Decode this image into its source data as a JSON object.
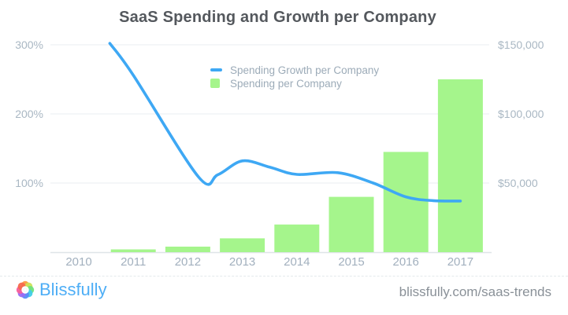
{
  "header": {
    "title": "SaaS Spending and Growth per Company"
  },
  "legend": {
    "items": [
      {
        "label": "Spending Growth per Company",
        "swatch": "line",
        "color": "#3ea8f4"
      },
      {
        "label": "Spending per Company",
        "swatch": "square",
        "color": "#a5f58c"
      }
    ]
  },
  "chart_data": {
    "type": "combo-bar-line",
    "title": "SaaS Spending and Growth per Company",
    "categories": [
      "2010",
      "2011",
      "2012",
      "2013",
      "2014",
      "2015",
      "2016",
      "2017"
    ],
    "series": [
      {
        "name": "Spending Growth per Company",
        "type": "line",
        "axis": "left",
        "unit": "percent",
        "color": "#3ea8f4",
        "values": [
          null,
          256,
          108,
          132,
          113,
          109,
          80,
          74
        ],
        "plot_points": [
          [
            2010.57,
            302
          ],
          [
            2011,
            256
          ],
          [
            2012.2,
            108.5
          ],
          [
            2012.55,
            112
          ],
          [
            2013,
            132
          ],
          [
            2013.5,
            123
          ],
          [
            2014,
            112.5
          ],
          [
            2014.75,
            115
          ],
          [
            2015.4,
            100
          ],
          [
            2016,
            80
          ],
          [
            2016.5,
            74.5
          ],
          [
            2017,
            74
          ]
        ]
      },
      {
        "name": "Spending per Company",
        "type": "bar",
        "axis": "right",
        "unit": "USD",
        "color": "#a5f58c",
        "values": [
          0,
          2000,
          4000,
          10000,
          20000,
          40000,
          72500,
          125000
        ]
      }
    ],
    "left_axis": {
      "ticks": [
        {
          "label": "100%",
          "value": 100
        },
        {
          "label": "200%",
          "value": 200
        },
        {
          "label": "300%",
          "value": 300
        }
      ],
      "min": 0,
      "max": 300
    },
    "right_axis": {
      "ticks": [
        {
          "label": "$50,000",
          "value": 50000
        },
        {
          "label": "$100,000",
          "value": 100000
        },
        {
          "label": "$150,000",
          "value": 150000
        }
      ],
      "min": 0,
      "max": 150000
    },
    "grid": true,
    "legend_position": "top-center-inside",
    "colors": {
      "gridline": "#edf0f3",
      "baseline": "#dfe4e8",
      "tick_text": "#a9b7c3",
      "category_text": "#a2b0be"
    }
  },
  "footer": {
    "brand": "Blissfully",
    "brand_icon": "blissfully-flower-logo",
    "url": "blissfully.com/saas-trends"
  }
}
